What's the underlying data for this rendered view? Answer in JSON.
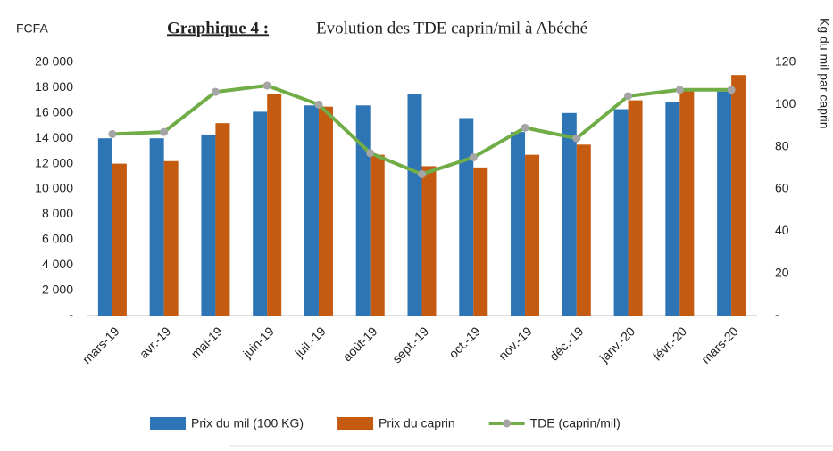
{
  "chart_data": {
    "type": "bar",
    "title_prefix": "Graphique  4 :",
    "title": "Evolution  des TDE caprin/mil  à Abéché",
    "y_label": "FCFA",
    "y2_label": "Kg du mil par caprin",
    "categories": [
      "mars-19",
      "avr.-19",
      "mai-19",
      "juin-19",
      "juil.-19",
      "août-19",
      "sept.-19",
      "oct.-19",
      "nov.-19",
      "déc.-19",
      "janv.-20",
      "févr.-20",
      "mars-20"
    ],
    "series": [
      {
        "name": "Prix du mil (100 KG)",
        "type": "bar",
        "color": "#2e75b6",
        "values": [
          14000,
          14000,
          14300,
          16100,
          16600,
          16600,
          17500,
          15600,
          14500,
          16000,
          16300,
          16900,
          17700
        ]
      },
      {
        "name": "Prix du caprin",
        "type": "bar",
        "color": "#c55a11",
        "values": [
          12000,
          12200,
          15200,
          17500,
          16500,
          12700,
          11800,
          11700,
          12700,
          13500,
          17000,
          17800,
          19000
        ]
      },
      {
        "name": "TDE (caprin/mil)",
        "type": "line",
        "axis": "y2",
        "color": "#70ad47",
        "marker_color": "#a5a5a5",
        "values": [
          86,
          87,
          106,
          109,
          100,
          77,
          67,
          75,
          89,
          84,
          104,
          107,
          107
        ]
      }
    ],
    "ylim": [
      0,
      20000
    ],
    "yticks": [
      {
        "value": 0,
        "label": "-"
      },
      {
        "value": 2000,
        "label": "2 000"
      },
      {
        "value": 4000,
        "label": "4 000"
      },
      {
        "value": 6000,
        "label": "6 000"
      },
      {
        "value": 8000,
        "label": "8 000"
      },
      {
        "value": 10000,
        "label": "10 000"
      },
      {
        "value": 12000,
        "label": "12 000"
      },
      {
        "value": 14000,
        "label": "14 000"
      },
      {
        "value": 16000,
        "label": "16 000"
      },
      {
        "value": 18000,
        "label": "18 000"
      },
      {
        "value": 20000,
        "label": "20 000"
      }
    ],
    "y2lim": [
      0,
      120
    ],
    "y2ticks": [
      {
        "value": 0,
        "label": "-"
      },
      20,
      40,
      60,
      80,
      100,
      120
    ],
    "grid": false,
    "legend": "bottom"
  }
}
